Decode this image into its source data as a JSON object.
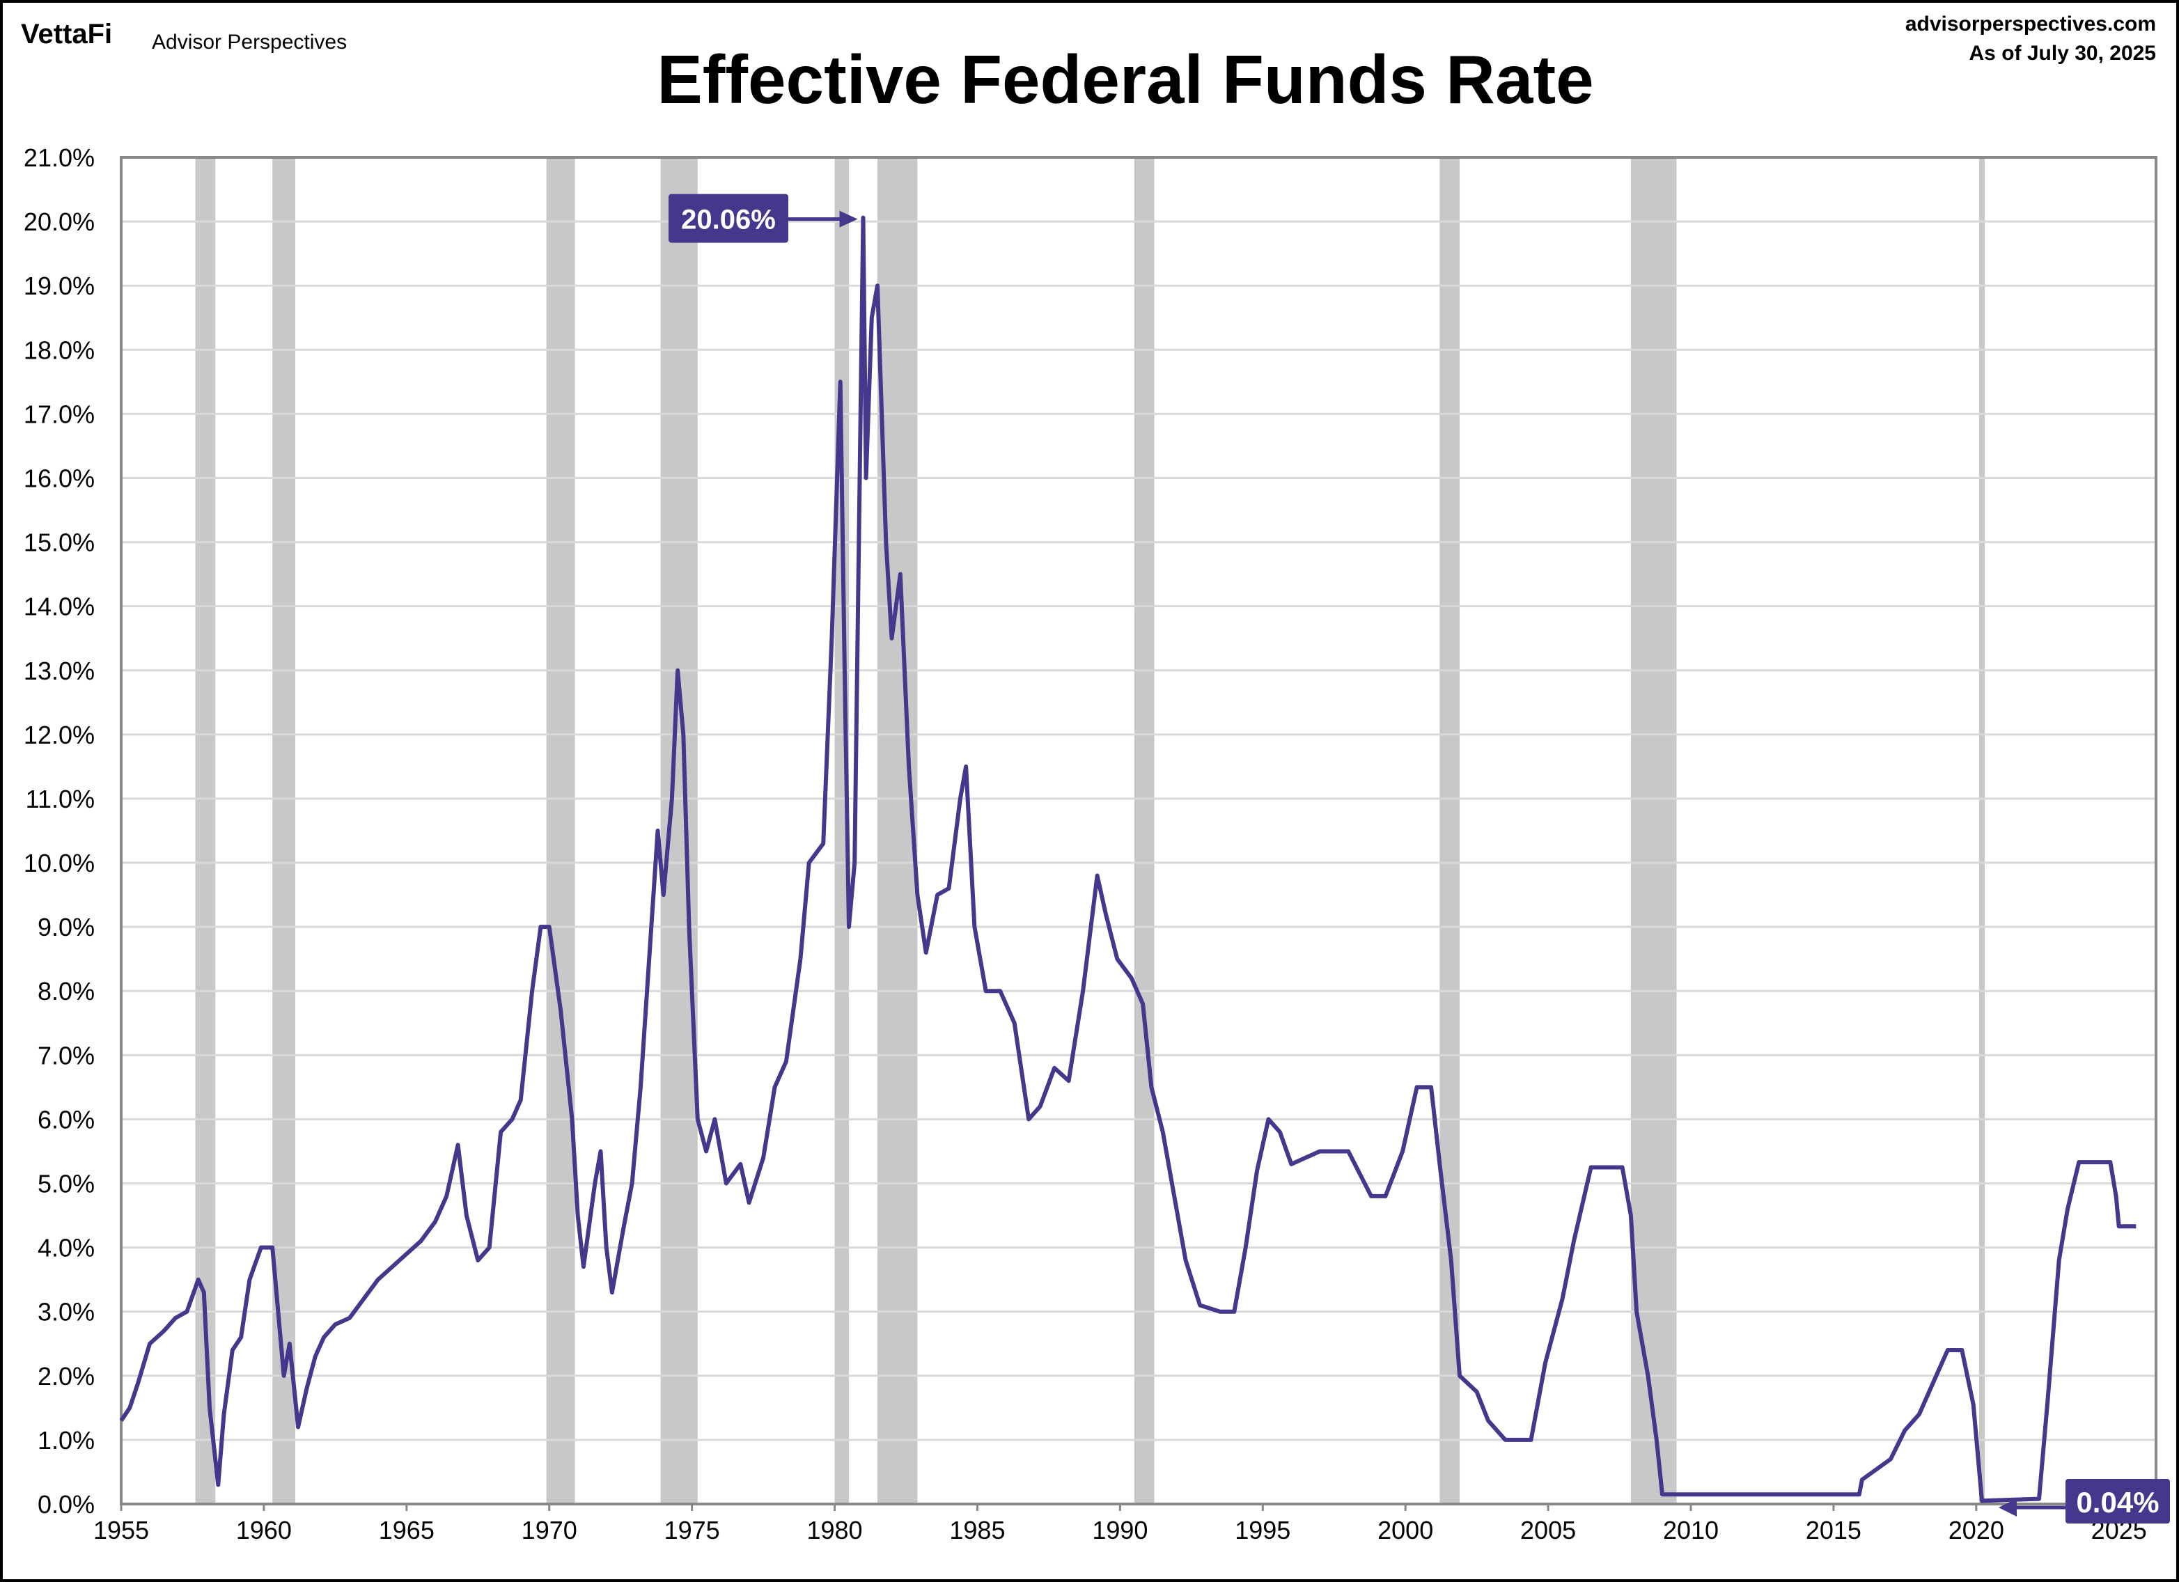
{
  "header": {
    "logo_brand": "VettaFi",
    "logo_sub": "Advisor Perspectives",
    "website": "advisorperspectives.com",
    "as_of": "As of July 30, 2025"
  },
  "chart_data": {
    "type": "line",
    "title": "Effective Federal Funds Rate",
    "xlabel": "",
    "ylabel": "",
    "xlim": [
      1955,
      2026.3
    ],
    "ylim": [
      0,
      21
    ],
    "grid": true,
    "x_ticks": [
      "1955",
      "1960",
      "1965",
      "1970",
      "1975",
      "1980",
      "1985",
      "1990",
      "1995",
      "2000",
      "2005",
      "2010",
      "2015",
      "2020",
      "2025"
    ],
    "y_ticks": [
      "0.0%",
      "1.0%",
      "2.0%",
      "3.0%",
      "4.0%",
      "5.0%",
      "6.0%",
      "7.0%",
      "8.0%",
      "9.0%",
      "10.0%",
      "11.0%",
      "12.0%",
      "13.0%",
      "14.0%",
      "15.0%",
      "16.0%",
      "17.0%",
      "18.0%",
      "19.0%",
      "20.0%",
      "21.0%"
    ],
    "line_color": "#46368c",
    "recession_color": "#c8c8c8",
    "recessions": [
      [
        1957.6,
        1958.3
      ],
      [
        1960.3,
        1961.1
      ],
      [
        1969.9,
        1970.9
      ],
      [
        1973.9,
        1975.2
      ],
      [
        1980.0,
        1980.5
      ],
      [
        1981.5,
        1982.9
      ],
      [
        1990.5,
        1991.2
      ],
      [
        2001.2,
        2001.9
      ],
      [
        2007.9,
        2009.5
      ],
      [
        2020.1,
        2020.3
      ]
    ],
    "series": [
      {
        "x": [
          1955.0,
          1955.3,
          1955.6,
          1955.8,
          1956.0,
          1956.5,
          1956.9,
          1957.3,
          1957.7,
          1957.9,
          1958.1,
          1958.3,
          1958.4,
          1958.6,
          1958.9,
          1959.2,
          1959.5,
          1959.9,
          1960.3,
          1960.5,
          1960.7,
          1960.9,
          1961.2,
          1961.5,
          1961.8,
          1962.1,
          1962.5,
          1963.0,
          1963.5,
          1964.0,
          1965.0,
          1965.5,
          1966.0,
          1966.4,
          1966.8,
          1967.1,
          1967.5,
          1967.9,
          1968.3,
          1968.7,
          1969.0,
          1969.4,
          1969.7,
          1970.0,
          1970.4,
          1970.8,
          1971.0,
          1971.2,
          1971.6,
          1971.8,
          1972.0,
          1972.2,
          1972.6,
          1972.9,
          1973.2,
          1973.5,
          1973.8,
          1974.0,
          1974.3,
          1974.5,
          1974.7,
          1974.9,
          1975.2,
          1975.5,
          1975.8,
          1976.2,
          1976.7,
          1977.0,
          1977.5,
          1977.9,
          1978.3,
          1978.8,
          1979.1,
          1979.6,
          1979.9,
          1980.2,
          1980.35,
          1980.5,
          1980.7,
          1981.0,
          1981.1,
          1981.3,
          1981.5,
          1981.8,
          1982.0,
          1982.3,
          1982.6,
          1982.9,
          1983.2,
          1983.6,
          1984.0,
          1984.4,
          1984.6,
          1984.9,
          1985.3,
          1985.8,
          1986.3,
          1986.8,
          1987.2,
          1987.7,
          1988.2,
          1988.7,
          1989.2,
          1989.5,
          1989.9,
          1990.4,
          1990.8,
          1991.1,
          1991.5,
          1991.9,
          1992.3,
          1992.8,
          1993.5,
          1994.0,
          1994.4,
          1994.8,
          1995.2,
          1995.6,
          1996.0,
          1997.0,
          1998.0,
          1998.8,
          1999.3,
          1999.9,
          2000.4,
          2000.9,
          2001.2,
          2001.6,
          2001.9,
          2002.5,
          2002.9,
          2003.5,
          2004.4,
          2004.9,
          2005.5,
          2005.9,
          2006.5,
          2007.6,
          2007.9,
          2008.1,
          2008.5,
          2008.8,
          2009.0,
          2011.0,
          2015.9,
          2016.0,
          2017.0,
          2017.5,
          2018.0,
          2018.5,
          2019.0,
          2019.5,
          2019.9,
          2020.2,
          2022.2,
          2022.5,
          2022.9,
          2023.2,
          2023.6,
          2024.7,
          2024.9,
          2025.0,
          2025.6
        ],
        "y": [
          1.3,
          1.5,
          1.9,
          2.2,
          2.5,
          2.7,
          2.9,
          3.0,
          3.5,
          3.3,
          1.5,
          0.7,
          0.3,
          1.4,
          2.4,
          2.6,
          3.5,
          4.0,
          4.0,
          3.0,
          2.0,
          2.5,
          1.2,
          1.8,
          2.3,
          2.6,
          2.8,
          2.9,
          3.2,
          3.5,
          3.9,
          4.1,
          4.4,
          4.8,
          5.6,
          4.5,
          3.8,
          4.0,
          5.8,
          6.0,
          6.3,
          8.0,
          9.0,
          9.0,
          7.7,
          6.0,
          4.5,
          3.7,
          5.0,
          5.5,
          4.0,
          3.3,
          4.3,
          5.0,
          6.5,
          8.5,
          10.5,
          9.5,
          11.0,
          13.0,
          12.0,
          9.0,
          6.0,
          5.5,
          6.0,
          5.0,
          5.3,
          4.7,
          5.4,
          6.5,
          6.9,
          8.5,
          10.0,
          10.3,
          13.5,
          17.5,
          13.0,
          9.0,
          10.0,
          20.06,
          16.0,
          18.5,
          19.0,
          15.0,
          13.5,
          14.5,
          11.5,
          9.5,
          8.6,
          9.5,
          9.6,
          11.0,
          11.5,
          9.0,
          8.0,
          8.0,
          7.5,
          6.0,
          6.2,
          6.8,
          6.6,
          8.0,
          9.8,
          9.2,
          8.5,
          8.2,
          7.8,
          6.5,
          5.8,
          4.8,
          3.8,
          3.1,
          3.0,
          3.0,
          4.0,
          5.2,
          6.0,
          5.8,
          5.3,
          5.5,
          5.5,
          4.8,
          4.8,
          5.5,
          6.5,
          6.5,
          5.3,
          3.8,
          2.0,
          1.75,
          1.3,
          1.0,
          1.0,
          2.2,
          3.2,
          4.1,
          5.25,
          5.25,
          4.5,
          3.0,
          2.0,
          1.0,
          0.15,
          0.15,
          0.15,
          0.38,
          0.7,
          1.15,
          1.4,
          1.9,
          2.4,
          2.4,
          1.55,
          0.05,
          0.08,
          1.6,
          3.8,
          4.6,
          5.33,
          5.33,
          4.8,
          4.33,
          4.33
        ]
      }
    ],
    "annotations": [
      {
        "label": "20.06%",
        "x": 1981.0,
        "y": 20.06
      },
      {
        "label": "0.04%",
        "x": 2021.0,
        "y": 0.04
      }
    ]
  }
}
